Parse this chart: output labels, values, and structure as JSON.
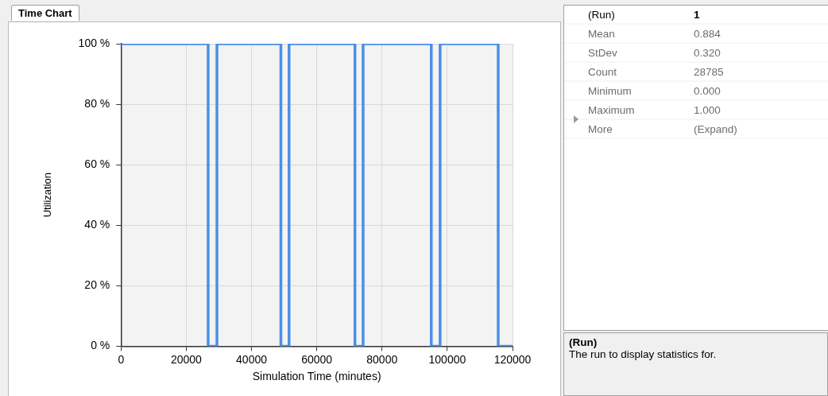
{
  "chart_data": [
    {
      "type": "step",
      "title": "Time Chart",
      "xlabel": "Simulation Time (minutes)",
      "ylabel": "Utilization",
      "x": [
        0,
        26700,
        29400,
        49000,
        51500,
        71700,
        74200,
        95100,
        97800,
        115600,
        120000
      ],
      "series": [
        {
          "color": "#4a8fe8",
          "values": [
            100,
            0,
            100,
            0,
            100,
            0,
            100,
            0,
            100,
            0,
            0
          ]
        }
      ],
      "xlim": [
        0,
        120000
      ],
      "xticks": [
        0,
        20000,
        40000,
        60000,
        80000,
        100000,
        120000
      ],
      "ylim": [
        0,
        100
      ],
      "yticks": [
        {
          "value": 0,
          "label": "0 %"
        },
        {
          "value": 20,
          "label": "20 %"
        },
        {
          "value": 40,
          "label": "40 %"
        },
        {
          "value": 60,
          "label": "60 %"
        },
        {
          "value": 80,
          "label": "80 %"
        },
        {
          "value": 100,
          "label": "100 %"
        }
      ],
      "grid": true,
      "marker": "none",
      "legend": false
    },
    {
      "type": "other",
      "annotations": [
        "(Run)",
        "1",
        "Mean",
        "0.884",
        "StDev",
        "0.320",
        "Count",
        "28785",
        "Minimum",
        "0.000",
        "Maximum",
        "1.000",
        "More",
        "(Expand)",
        "(Run)",
        "The run to display statistics for."
      ]
    }
  ]
}
